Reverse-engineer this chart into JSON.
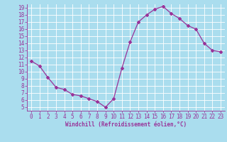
{
  "hours": [
    0,
    1,
    2,
    3,
    4,
    5,
    6,
    7,
    8,
    9,
    10,
    11,
    12,
    13,
    14,
    15,
    16,
    17,
    18,
    19,
    20,
    21,
    22,
    23
  ],
  "values": [
    11.5,
    10.8,
    9.2,
    7.8,
    7.5,
    6.8,
    6.6,
    6.2,
    5.8,
    5.0,
    6.2,
    10.5,
    14.2,
    17.0,
    18.0,
    18.8,
    19.2,
    18.2,
    17.5,
    16.5,
    16.0,
    14.0,
    13.0,
    12.8
  ],
  "line_color": "#993399",
  "marker": "D",
  "markersize": 2.0,
  "linewidth": 0.9,
  "bg_color": "#aaddee",
  "plot_bg_color": "#aaddee",
  "grid_color": "#ffffff",
  "tick_color": "#993399",
  "label_color": "#993399",
  "xlabel": "Windchill (Refroidissement éolien,°C)",
  "xlim": [
    -0.5,
    23.5
  ],
  "ylim": [
    4.5,
    19.5
  ],
  "xticks": [
    0,
    1,
    2,
    3,
    4,
    5,
    6,
    7,
    8,
    9,
    10,
    11,
    12,
    13,
    14,
    15,
    16,
    17,
    18,
    19,
    20,
    21,
    22,
    23
  ],
  "yticks": [
    5,
    6,
    7,
    8,
    9,
    10,
    11,
    12,
    13,
    14,
    15,
    16,
    17,
    18,
    19
  ],
  "tick_fontsize": 5.5,
  "xlabel_fontsize": 5.5
}
